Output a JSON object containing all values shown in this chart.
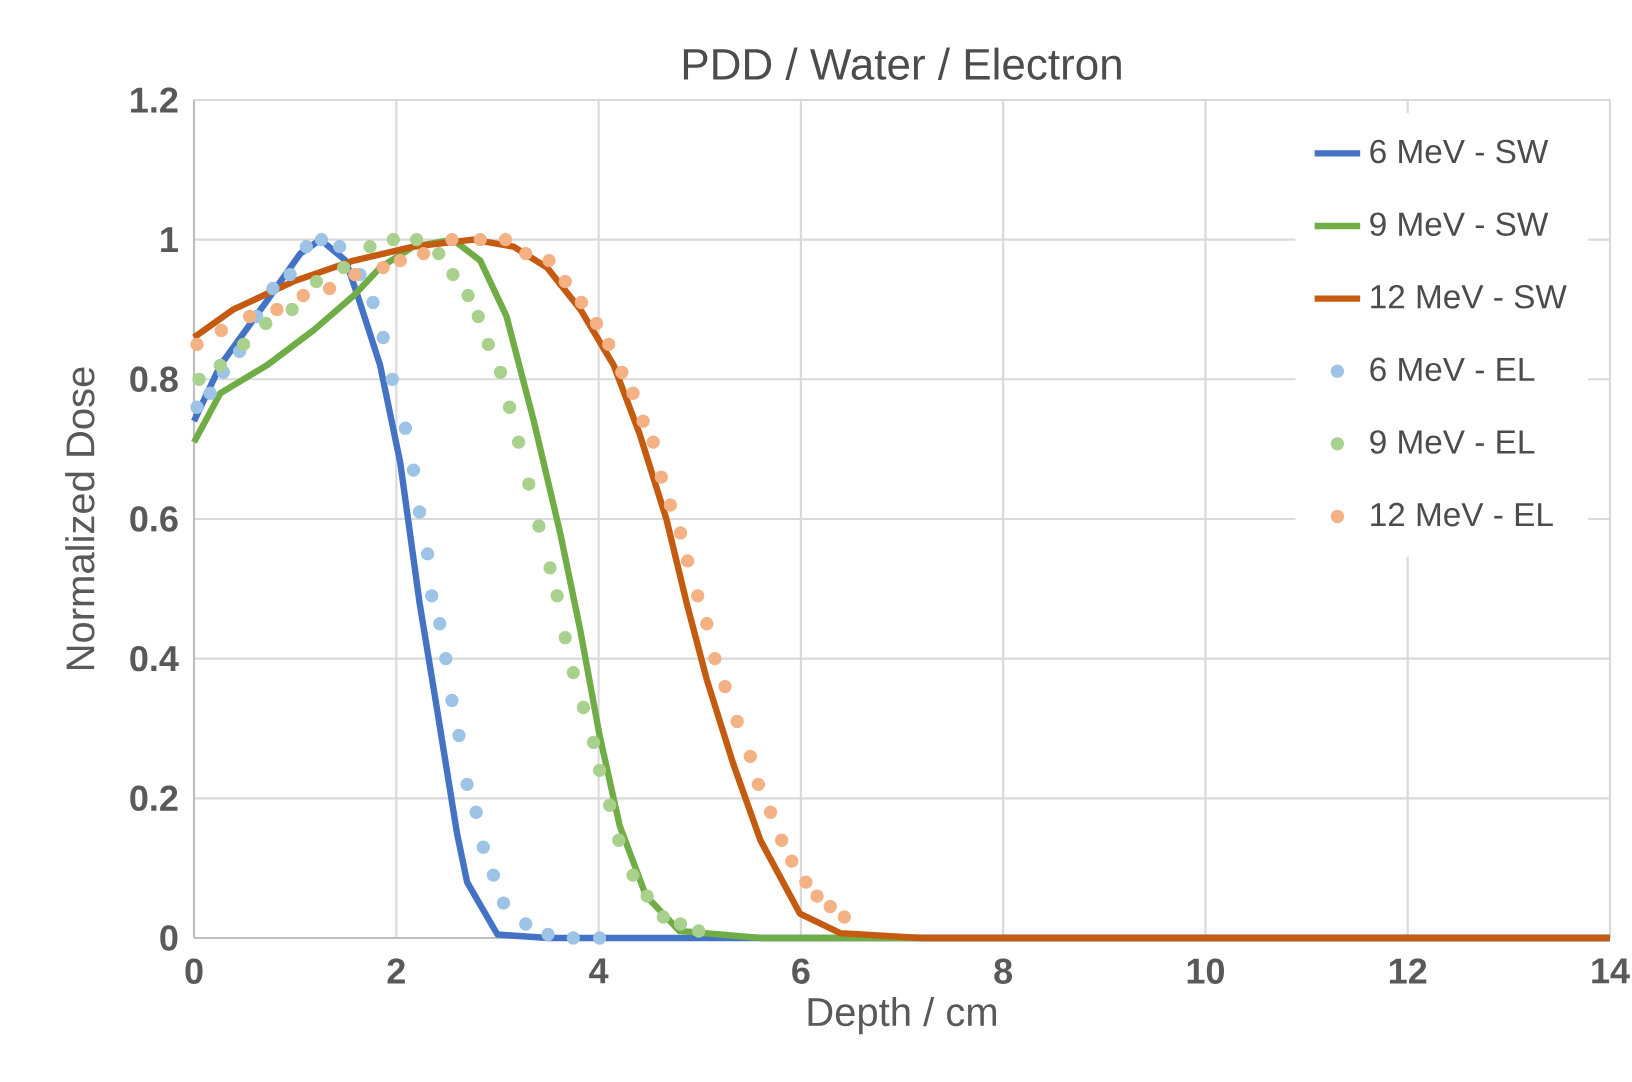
{
  "chart_data": {
    "type": "line",
    "title": "PDD  / Water / Electron",
    "xlabel": "Depth / cm",
    "ylabel": "Normalized Dose",
    "xlim": [
      0,
      14
    ],
    "xticks": [
      0,
      2,
      4,
      6,
      8,
      10,
      12,
      14
    ],
    "ylim": [
      0,
      1.2
    ],
    "yticks": [
      0,
      0.2,
      0.4,
      0.6,
      0.8,
      1,
      1.2
    ],
    "grid": true,
    "legend": "top right",
    "series": [
      {
        "name": "6 MeV - SW",
        "color": "#4472c4",
        "marker": "none",
        "line_style": "solid",
        "x": [
          0,
          0.26,
          0.71,
          1.05,
          1.25,
          1.5,
          1.64,
          1.84,
          2.04,
          2.23,
          2.4,
          2.6,
          2.7,
          2.8,
          3.0,
          3.5,
          6,
          14
        ],
        "values": [
          0.74,
          0.82,
          0.91,
          0.98,
          1.0,
          0.97,
          0.91,
          0.82,
          0.68,
          0.48,
          0.33,
          0.15,
          0.08,
          0.055,
          0.005,
          0,
          0,
          0
        ]
      },
      {
        "name": "9 MeV - SW",
        "color": "#70ad47",
        "marker": "none",
        "line_style": "solid",
        "x": [
          0,
          0.26,
          0.72,
          1.18,
          1.58,
          1.84,
          2.17,
          2.56,
          2.83,
          3.09,
          3.36,
          3.62,
          3.82,
          4.01,
          4.21,
          4.47,
          4.8,
          5.6,
          7,
          14
        ],
        "values": [
          0.71,
          0.78,
          0.82,
          0.87,
          0.92,
          0.96,
          0.99,
          1.0,
          0.97,
          0.89,
          0.74,
          0.58,
          0.44,
          0.29,
          0.16,
          0.06,
          0.01,
          0,
          0,
          0
        ]
      },
      {
        "name": "12 MeV - SW",
        "color": "#c55a11",
        "marker": "none",
        "line_style": "solid",
        "x": [
          0,
          0.39,
          0.98,
          1.58,
          2.17,
          2.76,
          3.16,
          3.49,
          3.82,
          4.15,
          4.41,
          4.67,
          4.87,
          5.07,
          5.33,
          5.6,
          5.99,
          6.39,
          7.18,
          14
        ],
        "values": [
          0.86,
          0.9,
          0.94,
          0.97,
          0.99,
          1.0,
          0.99,
          0.96,
          0.9,
          0.82,
          0.72,
          0.6,
          0.48,
          0.37,
          0.25,
          0.14,
          0.035,
          0.007,
          0,
          0
        ]
      },
      {
        "name": "6 MeV - EL",
        "type": "scatter",
        "color": "#9dc3e6",
        "marker": "circle",
        "x": [
          0.03,
          0.16,
          0.29,
          0.45,
          0.62,
          0.78,
          0.95,
          1.11,
          1.26,
          1.44,
          1.64,
          1.77,
          1.87,
          1.96,
          2.09,
          2.17,
          2.23,
          2.31,
          2.35,
          2.43,
          2.49,
          2.55,
          2.62,
          2.7,
          2.79,
          2.86,
          2.96,
          3.06,
          3.28,
          3.5,
          3.75,
          4.01
        ],
        "values": [
          0.76,
          0.78,
          0.81,
          0.84,
          0.89,
          0.93,
          0.95,
          0.99,
          1.0,
          0.99,
          0.95,
          0.91,
          0.86,
          0.8,
          0.73,
          0.67,
          0.61,
          0.55,
          0.49,
          0.45,
          0.4,
          0.34,
          0.29,
          0.22,
          0.18,
          0.13,
          0.09,
          0.05,
          0.02,
          0.005,
          0,
          0
        ]
      },
      {
        "name": "9 MeV - EL",
        "type": "scatter",
        "color": "#a9d18e",
        "marker": "circle",
        "x": [
          0.05,
          0.26,
          0.49,
          0.71,
          0.97,
          1.21,
          1.48,
          1.74,
          1.97,
          2.2,
          2.42,
          2.56,
          2.71,
          2.81,
          2.91,
          3.03,
          3.12,
          3.21,
          3.31,
          3.41,
          3.52,
          3.59,
          3.67,
          3.75,
          3.85,
          3.95,
          4.01,
          4.11,
          4.2,
          4.34,
          4.48,
          4.64,
          4.81,
          4.99
        ],
        "values": [
          0.8,
          0.82,
          0.85,
          0.88,
          0.9,
          0.94,
          0.96,
          0.99,
          1.0,
          1.0,
          0.98,
          0.95,
          0.92,
          0.89,
          0.85,
          0.81,
          0.76,
          0.71,
          0.65,
          0.59,
          0.53,
          0.49,
          0.43,
          0.38,
          0.33,
          0.28,
          0.24,
          0.19,
          0.14,
          0.09,
          0.06,
          0.03,
          0.02,
          0.01
        ]
      },
      {
        "name": "12 MeV - EL",
        "type": "scatter",
        "color": "#f4b183",
        "marker": "circle",
        "x": [
          0.03,
          0.27,
          0.55,
          0.82,
          1.08,
          1.34,
          1.59,
          1.87,
          2.04,
          2.27,
          2.55,
          2.83,
          3.08,
          3.28,
          3.51,
          3.67,
          3.83,
          3.98,
          4.1,
          4.23,
          4.34,
          4.44,
          4.54,
          4.62,
          4.71,
          4.81,
          4.88,
          4.98,
          5.07,
          5.15,
          5.25,
          5.37,
          5.5,
          5.58,
          5.7,
          5.81,
          5.91,
          6.05,
          6.16,
          6.29,
          6.43
        ],
        "values": [
          0.85,
          0.87,
          0.89,
          0.9,
          0.92,
          0.93,
          0.95,
          0.96,
          0.97,
          0.98,
          1.0,
          1.0,
          1.0,
          0.98,
          0.97,
          0.94,
          0.91,
          0.88,
          0.85,
          0.81,
          0.78,
          0.74,
          0.71,
          0.66,
          0.62,
          0.58,
          0.54,
          0.49,
          0.45,
          0.4,
          0.36,
          0.31,
          0.26,
          0.22,
          0.18,
          0.14,
          0.11,
          0.08,
          0.06,
          0.045,
          0.03
        ]
      }
    ]
  }
}
